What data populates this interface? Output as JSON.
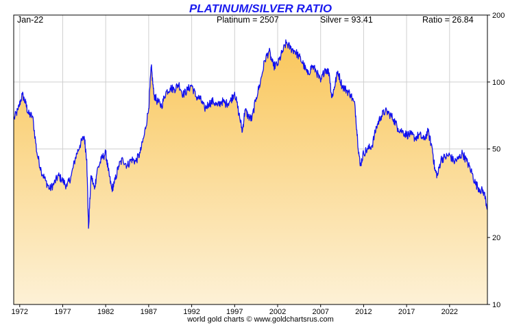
{
  "chart_data": {
    "type": "area",
    "title": "PLATINUM/SILVER RATIO",
    "xlabel": "",
    "ylabel": "",
    "header": {
      "date": "Jan-22",
      "platinum": "Platinum = 2507",
      "silver": "Silver = 93.41",
      "ratio": "Ratio = 26.84"
    },
    "y_scale": "log",
    "ylim": [
      10,
      200
    ],
    "y_ticks": [
      10,
      20,
      50,
      100,
      200
    ],
    "xlim": [
      1971.3,
      2026.4
    ],
    "x_ticks": [
      "1972",
      "1977",
      "1982",
      "1987",
      "1992",
      "1997",
      "2002",
      "2007",
      "2012",
      "2017",
      "2022"
    ],
    "grid": true,
    "legend": "none",
    "series": [
      {
        "color": "#1010ee",
        "fill_top": "#f9c65a",
        "fill_bottom": "#fdf1d6",
        "x": [
          1971.3,
          1971.8,
          1972.3,
          1972.7,
          1973.0,
          1973.5,
          1974.0,
          1974.5,
          1975.0,
          1975.5,
          1976.0,
          1976.5,
          1977.0,
          1977.5,
          1978.0,
          1978.5,
          1979.0,
          1979.5,
          1979.8,
          1980.0,
          1980.3,
          1980.7,
          1981.0,
          1981.5,
          1982.0,
          1982.3,
          1982.7,
          1983.0,
          1983.5,
          1984.0,
          1984.5,
          1985.0,
          1985.5,
          1986.0,
          1986.5,
          1987.0,
          1987.3,
          1987.6,
          1988.0,
          1988.5,
          1989.0,
          1989.5,
          1990.0,
          1990.5,
          1991.0,
          1991.5,
          1992.0,
          1992.5,
          1993.0,
          1993.5,
          1994.0,
          1994.5,
          1995.0,
          1995.5,
          1996.0,
          1996.5,
          1997.0,
          1997.5,
          1997.9,
          1998.2,
          1998.6,
          1999.0,
          1999.5,
          2000.0,
          2000.5,
          2001.0,
          2001.5,
          2002.0,
          2002.5,
          2003.0,
          2003.5,
          2004.0,
          2004.5,
          2005.0,
          2005.5,
          2006.0,
          2006.5,
          2007.0,
          2007.5,
          2008.0,
          2008.3,
          2008.6,
          2009.0,
          2009.5,
          2010.0,
          2010.5,
          2011.0,
          2011.3,
          2011.6,
          2012.0,
          2012.5,
          2013.0,
          2013.5,
          2014.0,
          2014.5,
          2015.0,
          2015.5,
          2016.0,
          2016.5,
          2017.0,
          2017.5,
          2018.0,
          2018.5,
          2019.0,
          2019.5,
          2020.0,
          2020.3,
          2020.6,
          2021.0,
          2021.5,
          2022.0,
          2022.5,
          2023.0,
          2023.5,
          2024.0,
          2024.5,
          2025.0,
          2025.5,
          2026.0,
          2026.4
        ],
        "values": [
          68,
          75,
          88,
          80,
          72,
          70,
          48,
          40,
          36,
          33,
          35,
          38,
          36,
          34,
          38,
          46,
          52,
          57,
          45,
          22,
          38,
          33,
          40,
          45,
          48,
          40,
          33,
          35,
          42,
          45,
          42,
          45,
          44,
          48,
          58,
          76,
          118,
          88,
          82,
          78,
          90,
          94,
          93,
          98,
          88,
          92,
          97,
          86,
          84,
          76,
          80,
          82,
          78,
          82,
          80,
          82,
          90,
          72,
          60,
          75,
          70,
          68,
          85,
          100,
          125,
          138,
          118,
          120,
          135,
          150,
          142,
          138,
          130,
          120,
          108,
          118,
          112,
          100,
          115,
          110,
          85,
          95,
          112,
          96,
          92,
          88,
          78,
          55,
          42,
          48,
          50,
          52,
          63,
          70,
          74,
          72,
          68,
          62,
          60,
          58,
          58,
          56,
          58,
          55,
          60,
          50,
          40,
          38,
          45,
          46,
          47,
          44,
          45,
          48,
          44,
          40,
          35,
          33,
          32,
          27
        ]
      }
    ]
  },
  "footer": "world gold charts © www.goldchartsrus.com"
}
